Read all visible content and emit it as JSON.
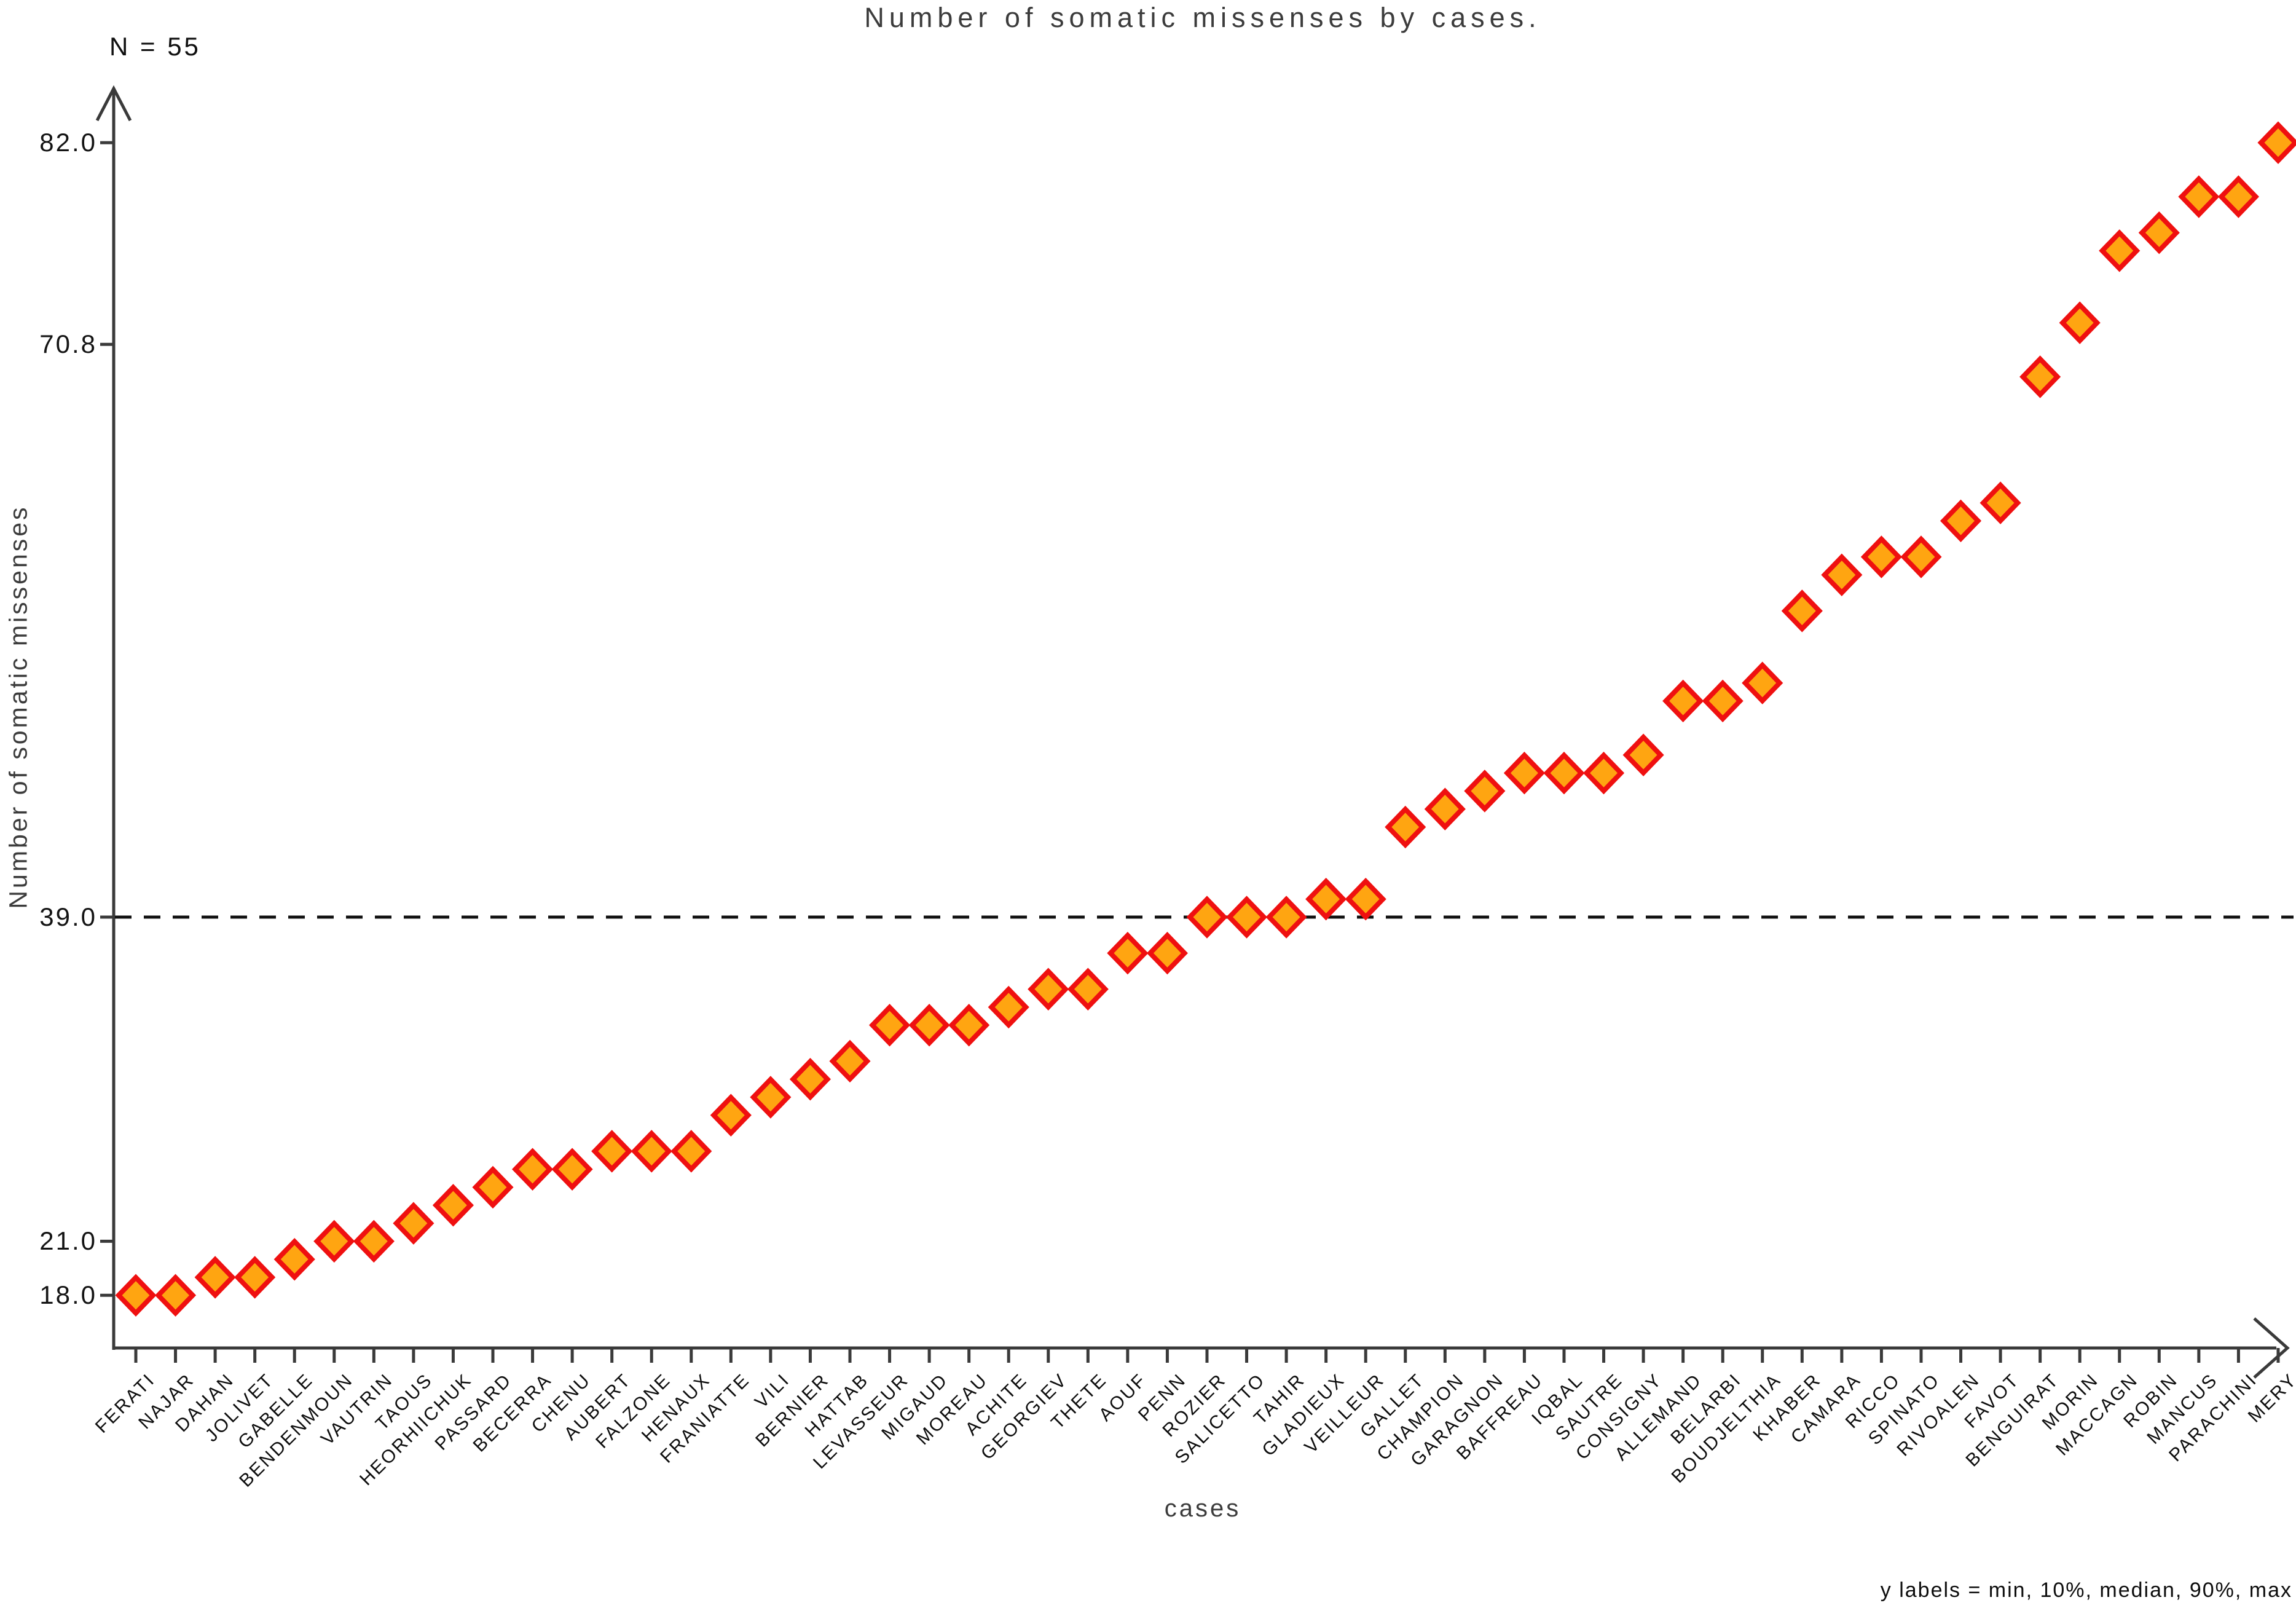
{
  "annotations": {
    "n_label": "N =  55",
    "footer": "y labels = min, 10%, median, 90%, max"
  },
  "chart_data": {
    "type": "scatter",
    "marker": "diamond",
    "title": "Number of somatic missenses by cases.",
    "xlabel": "cases",
    "ylabel": "Number of somatic missenses",
    "n": 55,
    "categories": [
      "FERATI",
      "NAJAR",
      "DAHAN",
      "JOLIVET",
      "GABELLE",
      "BENDENMOUN",
      "VAUTRIN",
      "TAOUS",
      "HEORHIICHUK",
      "PASSARD",
      "BECERRA",
      "CHENU",
      "AUBERT",
      "FALZONE",
      "HENAUX",
      "FRANIATTE",
      "VILI",
      "BERNIER",
      "HATTAB",
      "LEVASSEUR",
      "MIGAUD",
      "MOREAU",
      "ACHITE",
      "GEORGIEV",
      "THETE",
      "AOUF",
      "PENN",
      "ROZIER",
      "SALICETTO",
      "TAHIR",
      "GLADIEUX",
      "VEILLEUR",
      "GALLET",
      "CHAMPION",
      "GARAGNON",
      "BAFFREAU",
      "IQBAL",
      "SAUTRE",
      "CONSIGNY",
      "ALLEMAND",
      "BELARBI",
      "BOUDJELTHIA",
      "KHABER",
      "CAMARA",
      "RICCO",
      "SPINATO",
      "RIVOALEN",
      "FAVOT",
      "BENGUIRAT",
      "MORIN",
      "MACCAGN",
      "ROBIN",
      "MANCUS",
      "PARACHINI",
      "MERY"
    ],
    "values": [
      18,
      18,
      19,
      19,
      20,
      21,
      21,
      22,
      23,
      24,
      25,
      25,
      26,
      26,
      26,
      28,
      29,
      30,
      31,
      33,
      33,
      33,
      34,
      35,
      35,
      37,
      37,
      39,
      39,
      39,
      40,
      40,
      44,
      45,
      46,
      47,
      47,
      47,
      48,
      51,
      51,
      52,
      56,
      58,
      59,
      59,
      61,
      62,
      69,
      72,
      76,
      77,
      79,
      79,
      82
    ],
    "y_ticks": [
      {
        "label": "82.0",
        "value": 82
      },
      {
        "label": "70.8",
        "value": 70.8
      },
      {
        "label": "39.0",
        "value": 39
      },
      {
        "label": "21.0",
        "value": 21
      },
      {
        "label": "18.0",
        "value": 18
      }
    ],
    "y_tick_meaning": "min, 10%, median, 90%, max",
    "median_line_value": 39,
    "ylim": [
      15.1,
      85.3
    ],
    "grid": false,
    "legend": "none",
    "colors": {
      "marker_fill": "#FFA511",
      "marker_stroke": "#EF1010",
      "axis": "#3A3A3A",
      "median_line": "#111111",
      "title_text": "#3C3C3C",
      "tick_text": "#141414"
    }
  }
}
